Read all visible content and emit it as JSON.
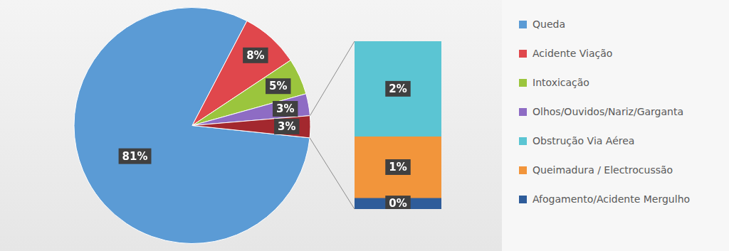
{
  "chart_data": [
    {
      "type": "pie",
      "categories": [
        "Queda",
        "Acidente Viação",
        "Intoxicação",
        "Olhos/Ouvidos/Nariz/Garganta",
        null
      ],
      "values": [
        81,
        8,
        5,
        3,
        3
      ],
      "value_labels": [
        "81%",
        "8%",
        "5%",
        "3%",
        "3%"
      ],
      "colors": [
        "#5b9bd5",
        "#e0474c",
        "#9bc53d",
        "#8e6cc4",
        "#a3282e"
      ],
      "data_labels": true,
      "legend": "right"
    },
    {
      "type": "bar",
      "stacked": true,
      "tick_labels": false,
      "ylim": [
        0,
        3
      ],
      "series": [
        {
          "name": "Obstrução Via Aérea",
          "color": "#5bc5d3",
          "values": [
            1.7
          ],
          "value_labels": [
            "2%"
          ]
        },
        {
          "name": "Queimadura / Electrocussão",
          "color": "#f2953b",
          "values": [
            1.1
          ],
          "value_labels": [
            "1%"
          ]
        },
        {
          "name": "Afogamento/Acidente Mergulho",
          "color": "#2e5c9a",
          "values": [
            0.2
          ],
          "value_labels": [
            "0%"
          ]
        }
      ],
      "data_labels": true,
      "legend": "right"
    }
  ]
}
